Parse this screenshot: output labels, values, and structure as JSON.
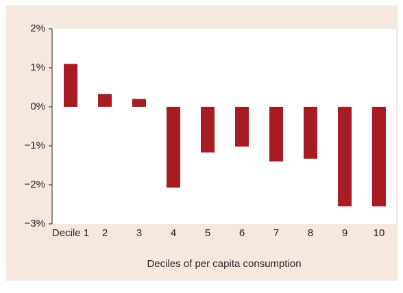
{
  "chart_data": {
    "type": "bar",
    "x_label": "Deciles of per capita consumption",
    "categories": [
      "Decile 1",
      "2",
      "3",
      "4",
      "5",
      "6",
      "7",
      "8",
      "9",
      "10"
    ],
    "values": [
      1.1,
      0.33,
      0.2,
      -2.07,
      -1.17,
      -1.02,
      -1.4,
      -1.33,
      -2.55,
      -2.55
    ],
    "color": "#a51d23",
    "ylim": [
      -3,
      2
    ],
    "yticks": [
      {
        "value": -3,
        "label": "−3%"
      },
      {
        "value": -2,
        "label": "−2%"
      },
      {
        "value": -1,
        "label": "−1%"
      },
      {
        "value": 0,
        "label": "0%"
      },
      {
        "value": 1,
        "label": "1%"
      },
      {
        "value": 2,
        "label": "2%"
      }
    ],
    "grid": false
  }
}
